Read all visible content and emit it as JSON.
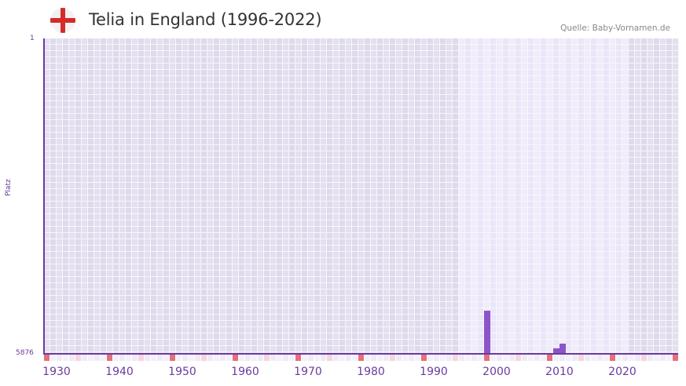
{
  "header": {
    "title": "Telia in England (1996-2022)",
    "source": "Quelle: Baby-Vornamen.de",
    "flag": "england-flag-icon"
  },
  "axes": {
    "y_top": "1",
    "y_bottom": "5876",
    "y_label": "Platz",
    "x_ticks": [
      "1930",
      "1940",
      "1950",
      "1960",
      "1970",
      "1980",
      "1990",
      "2000",
      "2010",
      "2020"
    ]
  },
  "colors": {
    "bar": "#8b55c8",
    "axis": "#6a3aa0",
    "bg_out": "#e4e0ef",
    "bg_in": "#f0ecfa",
    "marker_decade": "#e56f7a",
    "marker_half": "#f5d5de",
    "marker_plain": "#efeaf8"
  },
  "chart_data": {
    "type": "bar",
    "title": "Telia in England (1996-2022)",
    "xlabel": "",
    "ylabel": "Platz",
    "ylim": [
      5876,
      1
    ],
    "y_inverted": true,
    "x_range": [
      1928,
      2028
    ],
    "highlight_range": [
      1994,
      2020
    ],
    "grid": true,
    "categories": [
      "1998",
      "2009",
      "2010"
    ],
    "values": [
      5085,
      5788,
      5700
    ],
    "x_ticks": [
      1930,
      1940,
      1950,
      1960,
      1970,
      1980,
      1990,
      2000,
      2010,
      2020
    ],
    "source": "Quelle: Baby-Vornamen.de"
  }
}
